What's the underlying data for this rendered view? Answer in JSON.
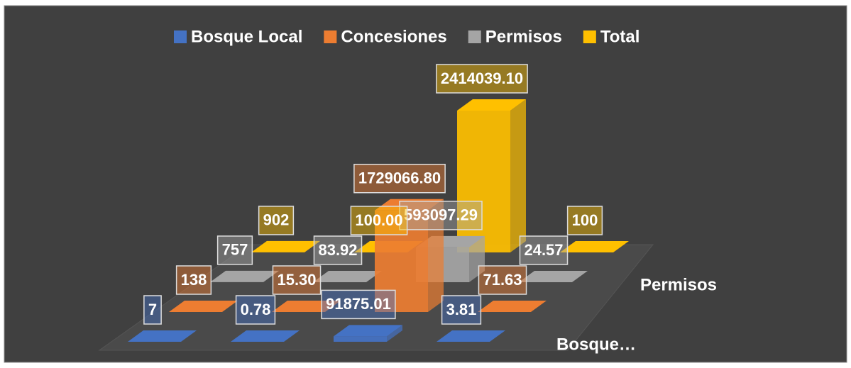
{
  "chart_data": {
    "type": "bar3d",
    "series": [
      {
        "name": "Bosque Local",
        "color": "#4472c4",
        "values": [
          7,
          0.78,
          91875.01,
          3.81
        ],
        "value_labels": [
          "7",
          "0.78",
          "91875.01",
          "3.81"
        ]
      },
      {
        "name": "Concesiones",
        "color": "#ed7d31",
        "values": [
          138,
          15.3,
          1729066.8,
          71.63
        ],
        "value_labels": [
          "138",
          "15.30",
          "1729066.80",
          "71.63"
        ]
      },
      {
        "name": "Permisos",
        "color": "#a5a5a5",
        "values": [
          757,
          83.92,
          593097.29,
          24.57
        ],
        "value_labels": [
          "757",
          "83.92",
          "593097.29",
          "24.57"
        ]
      },
      {
        "name": "Total",
        "color": "#ffc000",
        "values": [
          902,
          100,
          2414039.1,
          100
        ],
        "value_labels": [
          "902",
          "100.00",
          "2414039.10",
          "100"
        ]
      }
    ],
    "depth_labels": [
      "Bosque…",
      null,
      "Permisos",
      null
    ],
    "legend": "top"
  }
}
